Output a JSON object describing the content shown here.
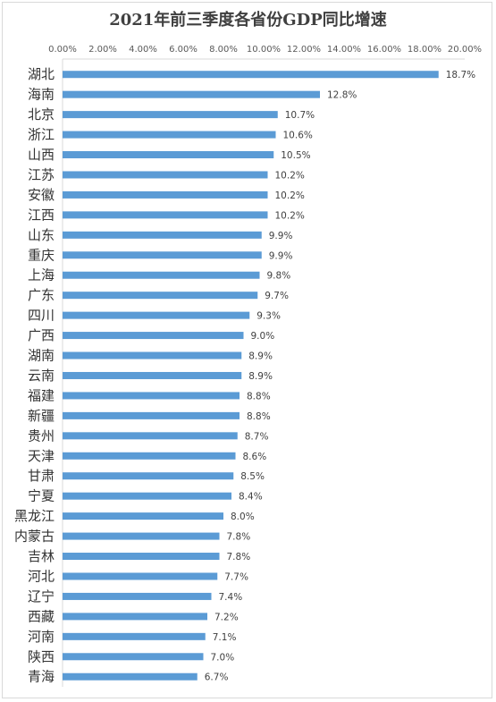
{
  "chart_data": {
    "type": "bar",
    "orientation": "horizontal",
    "title": "2021年前三季度各省份GDP同比增速",
    "xlabel": "",
    "ylabel": "",
    "xlim": [
      0,
      20
    ],
    "x_ticks": [
      "0.00%",
      "2.00%",
      "4.00%",
      "6.00%",
      "8.00%",
      "10.00%",
      "12.00%",
      "14.00%",
      "16.00%",
      "18.00%",
      "20.00%"
    ],
    "x_axis_position": "top",
    "grid": false,
    "legend": "none",
    "bar_color": "#5b9bd5",
    "categories": [
      "湖北",
      "海南",
      "北京",
      "浙江",
      "山西",
      "江苏",
      "安徽",
      "江西",
      "山东",
      "重庆",
      "上海",
      "广东",
      "四川",
      "广西",
      "湖南",
      "云南",
      "福建",
      "新疆",
      "贵州",
      "天津",
      "甘肃",
      "宁夏",
      "黑龙江",
      "内蒙古",
      "吉林",
      "河北",
      "辽宁",
      "西藏",
      "河南",
      "陕西",
      "青海"
    ],
    "values": [
      18.7,
      12.8,
      10.7,
      10.6,
      10.5,
      10.2,
      10.2,
      10.2,
      9.9,
      9.9,
      9.8,
      9.7,
      9.3,
      9.0,
      8.9,
      8.9,
      8.8,
      8.8,
      8.7,
      8.6,
      8.5,
      8.4,
      8.0,
      7.8,
      7.8,
      7.7,
      7.4,
      7.2,
      7.1,
      7.0,
      6.7
    ],
    "data_labels": [
      "18.7%",
      "12.8%",
      "10.7%",
      "10.6%",
      "10.5%",
      "10.2%",
      "10.2%",
      "10.2%",
      "9.9%",
      "9.9%",
      "9.8%",
      "9.7%",
      "9.3%",
      "9.0%",
      "8.9%",
      "8.9%",
      "8.8%",
      "8.8%",
      "8.7%",
      "8.6%",
      "8.5%",
      "8.4%",
      "8.0%",
      "7.8%",
      "7.8%",
      "7.7%",
      "7.4%",
      "7.2%",
      "7.1%",
      "7.0%",
      "6.7%"
    ]
  }
}
